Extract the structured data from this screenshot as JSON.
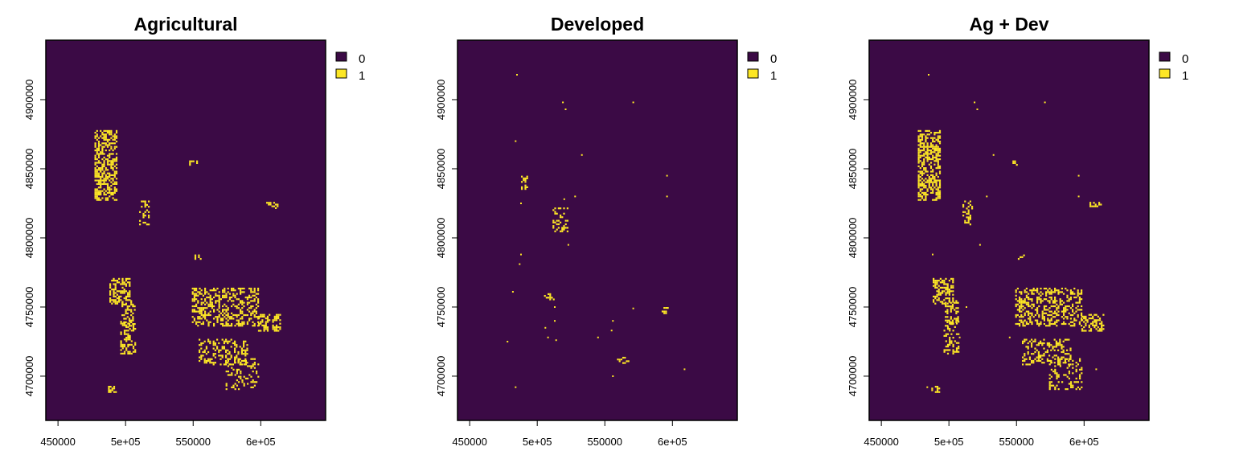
{
  "colors": {
    "class_0": "#3b0a45",
    "class_1": "#fde725"
  },
  "chart_data": [
    {
      "type": "heatmap",
      "title": "Agricultural",
      "xlabel": "",
      "ylabel": "",
      "xlim": [
        441000,
        648000
      ],
      "ylim": [
        4668000,
        4943000
      ],
      "x_ticks": [
        450000,
        500000,
        550000,
        600000
      ],
      "x_tick_labels": [
        "450000",
        "5e+05",
        "550000",
        "6e+05"
      ],
      "y_ticks": [
        4700000,
        4750000,
        4800000,
        4850000,
        4900000
      ],
      "y_tick_labels": [
        "4700000",
        "4750000",
        "4800000",
        "4850000",
        "4900000"
      ],
      "legend": {
        "position": "top-right",
        "entries": [
          {
            "label": "0",
            "class": 0
          },
          {
            "label": "1",
            "class": 1
          }
        ]
      },
      "class_1_regions": [
        {
          "x": [
            477000,
            493000
          ],
          "y": [
            4827000,
            4878000
          ],
          "density": 0.55
        },
        {
          "x": [
            510000,
            517000
          ],
          "y": [
            4810000,
            4827000
          ],
          "density": 0.35
        },
        {
          "x": [
            488000,
            503000
          ],
          "y": [
            4752000,
            4771000
          ],
          "density": 0.5
        },
        {
          "x": [
            497000,
            507000
          ],
          "y": [
            4737000,
            4755000
          ],
          "density": 0.35
        },
        {
          "x": [
            496000,
            507000
          ],
          "y": [
            4716000,
            4740000
          ],
          "density": 0.35
        },
        {
          "x": [
            487000,
            493000
          ],
          "y": [
            4689000,
            4693000
          ],
          "density": 0.5
        },
        {
          "x": [
            549000,
            598000
          ],
          "y": [
            4737000,
            4764000
          ],
          "density": 0.4
        },
        {
          "x": [
            598000,
            614000
          ],
          "y": [
            4733000,
            4745000
          ],
          "density": 0.45
        },
        {
          "x": [
            554000,
            590000
          ],
          "y": [
            4708000,
            4727000
          ],
          "density": 0.35
        },
        {
          "x": [
            574000,
            598000
          ],
          "y": [
            4690000,
            4713000
          ],
          "density": 0.25
        },
        {
          "x": [
            604000,
            612000
          ],
          "y": [
            4822000,
            4826000
          ],
          "density": 0.4
        },
        {
          "x": [
            547000,
            553000
          ],
          "y": [
            4853000,
            4856000
          ],
          "density": 0.4
        },
        {
          "x": [
            551000,
            556000
          ],
          "y": [
            4785000,
            4788000
          ],
          "density": 0.4
        }
      ]
    },
    {
      "type": "heatmap",
      "title": "Developed",
      "xlabel": "",
      "ylabel": "",
      "xlim": [
        441000,
        648000
      ],
      "ylim": [
        4668000,
        4943000
      ],
      "x_ticks": [
        450000,
        500000,
        550000,
        600000
      ],
      "x_tick_labels": [
        "450000",
        "5e+05",
        "550000",
        "6e+05"
      ],
      "y_ticks": [
        4700000,
        4750000,
        4800000,
        4850000,
        4900000
      ],
      "y_tick_labels": [
        "4700000",
        "4750000",
        "4800000",
        "4850000",
        "4900000"
      ],
      "legend": {
        "position": "top-right",
        "entries": [
          {
            "label": "0",
            "class": 0
          },
          {
            "label": "1",
            "class": 1
          }
        ]
      },
      "class_1_regions": [
        {
          "x": [
            488000,
            492000
          ],
          "y": [
            4835000,
            4845000
          ],
          "density": 0.3
        },
        {
          "x": [
            510000,
            522000
          ],
          "y": [
            4805000,
            4822000
          ],
          "density": 0.25
        },
        {
          "x": [
            505000,
            512000
          ],
          "y": [
            4755000,
            4760000
          ],
          "density": 0.3
        },
        {
          "x": [
            592000,
            598000
          ],
          "y": [
            4745000,
            4750000
          ],
          "density": 0.3
        },
        {
          "x": [
            559000,
            568000
          ],
          "y": [
            4710000,
            4714000
          ],
          "density": 0.3
        }
      ],
      "class_1_points": [
        [
          485000,
          4918000
        ],
        [
          519000,
          4898000
        ],
        [
          521000,
          4893000
        ],
        [
          571000,
          4898000
        ],
        [
          484000,
          4870000
        ],
        [
          533000,
          4860000
        ],
        [
          596000,
          4845000
        ],
        [
          488000,
          4825000
        ],
        [
          528000,
          4830000
        ],
        [
          520000,
          4828000
        ],
        [
          596000,
          4830000
        ],
        [
          523000,
          4795000
        ],
        [
          488000,
          4788000
        ],
        [
          487000,
          4781000
        ],
        [
          482000,
          4761000
        ],
        [
          513000,
          4750000
        ],
        [
          513000,
          4740000
        ],
        [
          506000,
          4735000
        ],
        [
          556000,
          4740000
        ],
        [
          571000,
          4749000
        ],
        [
          478000,
          4725000
        ],
        [
          508000,
          4728000
        ],
        [
          514000,
          4726000
        ],
        [
          545000,
          4728000
        ],
        [
          555000,
          4733000
        ],
        [
          484000,
          4692000
        ],
        [
          556000,
          4700000
        ],
        [
          609000,
          4705000
        ],
        [
          561000,
          4712000
        ]
      ]
    },
    {
      "type": "heatmap",
      "title": "Ag + Dev",
      "xlabel": "",
      "ylabel": "",
      "xlim": [
        441000,
        648000
      ],
      "ylim": [
        4668000,
        4943000
      ],
      "x_ticks": [
        450000,
        500000,
        550000,
        600000
      ],
      "x_tick_labels": [
        "450000",
        "5e+05",
        "550000",
        "6e+05"
      ],
      "y_ticks": [
        4700000,
        4750000,
        4800000,
        4850000,
        4900000
      ],
      "y_tick_labels": [
        "4700000",
        "4750000",
        "4800000",
        "4850000",
        "4900000"
      ],
      "legend": {
        "position": "top-right",
        "entries": [
          {
            "label": "0",
            "class": 0
          },
          {
            "label": "1",
            "class": 1
          }
        ]
      },
      "class_1_regions": [
        {
          "x": [
            477000,
            493000
          ],
          "y": [
            4827000,
            4878000
          ],
          "density": 0.55
        },
        {
          "x": [
            510000,
            517000
          ],
          "y": [
            4810000,
            4827000
          ],
          "density": 0.35
        },
        {
          "x": [
            488000,
            503000
          ],
          "y": [
            4752000,
            4771000
          ],
          "density": 0.5
        },
        {
          "x": [
            497000,
            507000
          ],
          "y": [
            4737000,
            4755000
          ],
          "density": 0.35
        },
        {
          "x": [
            496000,
            507000
          ],
          "y": [
            4716000,
            4740000
          ],
          "density": 0.35
        },
        {
          "x": [
            487000,
            493000
          ],
          "y": [
            4689000,
            4693000
          ],
          "density": 0.5
        },
        {
          "x": [
            549000,
            598000
          ],
          "y": [
            4737000,
            4764000
          ],
          "density": 0.4
        },
        {
          "x": [
            598000,
            614000
          ],
          "y": [
            4733000,
            4745000
          ],
          "density": 0.45
        },
        {
          "x": [
            554000,
            590000
          ],
          "y": [
            4708000,
            4727000
          ],
          "density": 0.35
        },
        {
          "x": [
            574000,
            598000
          ],
          "y": [
            4690000,
            4713000
          ],
          "density": 0.25
        },
        {
          "x": [
            604000,
            612000
          ],
          "y": [
            4822000,
            4826000
          ],
          "density": 0.4
        },
        {
          "x": [
            547000,
            553000
          ],
          "y": [
            4853000,
            4856000
          ],
          "density": 0.4
        },
        {
          "x": [
            551000,
            556000
          ],
          "y": [
            4785000,
            4788000
          ],
          "density": 0.4
        }
      ],
      "class_1_points": [
        [
          485000,
          4918000
        ],
        [
          519000,
          4898000
        ],
        [
          521000,
          4893000
        ],
        [
          571000,
          4898000
        ],
        [
          533000,
          4860000
        ],
        [
          596000,
          4845000
        ],
        [
          528000,
          4830000
        ],
        [
          596000,
          4830000
        ],
        [
          523000,
          4795000
        ],
        [
          488000,
          4788000
        ],
        [
          513000,
          4750000
        ],
        [
          556000,
          4740000
        ],
        [
          508000,
          4728000
        ],
        [
          545000,
          4728000
        ],
        [
          484000,
          4692000
        ],
        [
          609000,
          4705000
        ]
      ]
    }
  ]
}
